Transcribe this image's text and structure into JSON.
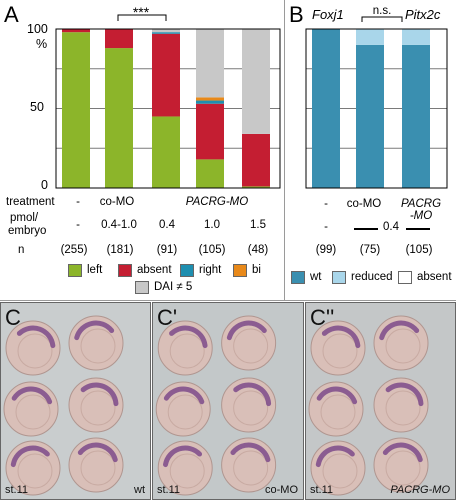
{
  "panels": {
    "A": {
      "letter": "A",
      "gene": "Pitx2c"
    },
    "B": {
      "letter": "B",
      "gene": "Foxj1"
    },
    "C": {
      "letter": "C",
      "stage": "st.11",
      "condition": "wt"
    },
    "C1": {
      "letter": "C'",
      "stage": "st.11",
      "condition": "co-MO"
    },
    "C2": {
      "letter": "C''",
      "stage": "st.11",
      "condition": "PACRG-MO"
    }
  },
  "axis_a": {
    "y_label": "%",
    "ticks": [
      "0",
      "50",
      "100"
    ]
  },
  "rows_a": {
    "treatment_label": "treatment",
    "dose_label_1": "pmol/",
    "dose_label_2": "embryo",
    "n_label": "n",
    "treatments": [
      "-",
      "co-MO",
      "PACRG-MO"
    ],
    "doses": [
      "-",
      "0.4-1.0",
      "0.4",
      "1.0",
      "1.5"
    ],
    "ns": [
      "(255)",
      "(181)",
      "(91)",
      "(105)",
      "(48)"
    ]
  },
  "rows_b": {
    "treatments": [
      "-",
      "co-MO",
      "PACRG",
      "-MO"
    ],
    "dose": "0.4",
    "ns": [
      "(99)",
      "(75)",
      "(105)"
    ]
  },
  "significance": {
    "a": "***",
    "b": "n.s."
  },
  "legend_a": [
    {
      "label": "left",
      "color": "#8cb52a"
    },
    {
      "label": "absent",
      "color": "#c41e32"
    },
    {
      "label": "right",
      "color": "#1e8fb0"
    },
    {
      "label": "bi",
      "color": "#e8891a"
    },
    {
      "label": "DAI ≠ 5",
      "color": "#c8c8c8"
    }
  ],
  "legend_b": [
    {
      "label": "wt",
      "color": "#3a8fb0"
    },
    {
      "label": "reduced",
      "color": "#a9d6ea"
    },
    {
      "label": "absent",
      "color": "#ffffff"
    }
  ],
  "chart_data": [
    {
      "type": "bar",
      "stacked": true,
      "title": "Pitx2c",
      "ylabel": "%",
      "ylim": [
        0,
        100
      ],
      "categories": [
        "-",
        "co-MO 0.4-1.0",
        "PACRG-MO 0.4",
        "PACRG-MO 1.0",
        "PACRG-MO 1.5"
      ],
      "series": [
        {
          "name": "left",
          "color": "#8cb52a",
          "values": [
            98,
            88,
            45,
            18,
            1
          ]
        },
        {
          "name": "absent",
          "color": "#c41e32",
          "values": [
            2,
            12,
            52,
            35,
            33
          ]
        },
        {
          "name": "right",
          "color": "#1e8fb0",
          "values": [
            0,
            0,
            1,
            2,
            0
          ]
        },
        {
          "name": "bi",
          "color": "#e8891a",
          "values": [
            0,
            0,
            0,
            2,
            0
          ]
        },
        {
          "name": "DAI ≠ 5",
          "color": "#c8c8c8",
          "values": [
            0,
            0,
            2,
            43,
            66
          ]
        }
      ],
      "grid": true
    },
    {
      "type": "bar",
      "stacked": true,
      "title": "Foxj1",
      "ylim": [
        0,
        100
      ],
      "categories": [
        "-",
        "co-MO",
        "PACRG-MO 0.4"
      ],
      "series": [
        {
          "name": "wt",
          "color": "#3a8fb0",
          "values": [
            100,
            90,
            90
          ]
        },
        {
          "name": "reduced",
          "color": "#a9d6ea",
          "values": [
            0,
            10,
            10
          ]
        },
        {
          "name": "absent",
          "color": "#ffffff",
          "values": [
            0,
            0,
            0
          ]
        }
      ],
      "grid": true
    }
  ]
}
